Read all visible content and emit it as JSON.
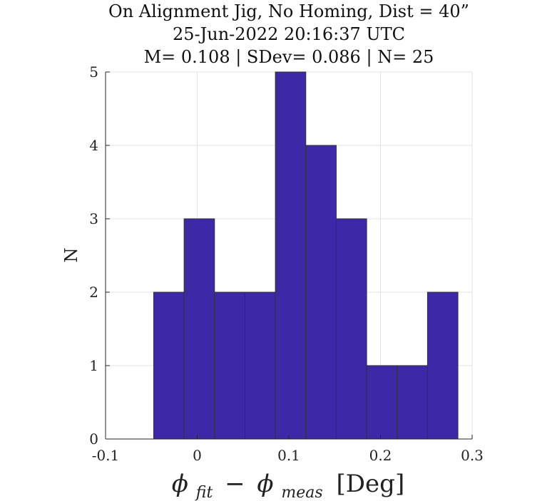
{
  "chart_data": {
    "type": "bar",
    "title_lines": [
      "On Alignment Jig, No Homing, Dist = 40”",
      "25-Jun-2022 20:16:37 UTC",
      "M= 0.108 | SDev= 0.086 | N= 25"
    ],
    "xlabel_parts": {
      "phi": "ϕ",
      "sub1": "fit",
      "minus": "−",
      "sub2": "meas",
      "unit": "[Deg]"
    },
    "ylabel": "N",
    "xlim": [
      -0.1,
      0.3
    ],
    "ylim": [
      0,
      5
    ],
    "x_ticks": [
      -0.1,
      0,
      0.1,
      0.2,
      0.3
    ],
    "x_tick_labels": [
      "-0.1",
      "0",
      "0.1",
      "0.2",
      "0.3"
    ],
    "y_ticks": [
      0,
      1,
      2,
      3,
      4,
      5
    ],
    "y_tick_labels": [
      "0",
      "1",
      "2",
      "3",
      "4",
      "5"
    ],
    "grid": true,
    "bin_edges": [
      -0.0475,
      -0.0143,
      0.0189,
      0.0521,
      0.0853,
      0.1185,
      0.1517,
      0.1849,
      0.2181,
      0.2513,
      0.2845
    ],
    "values": [
      2,
      3,
      2,
      2,
      5,
      4,
      3,
      1,
      1,
      2
    ],
    "bar_color": "#3d28a8",
    "edge_color": "#333333"
  }
}
